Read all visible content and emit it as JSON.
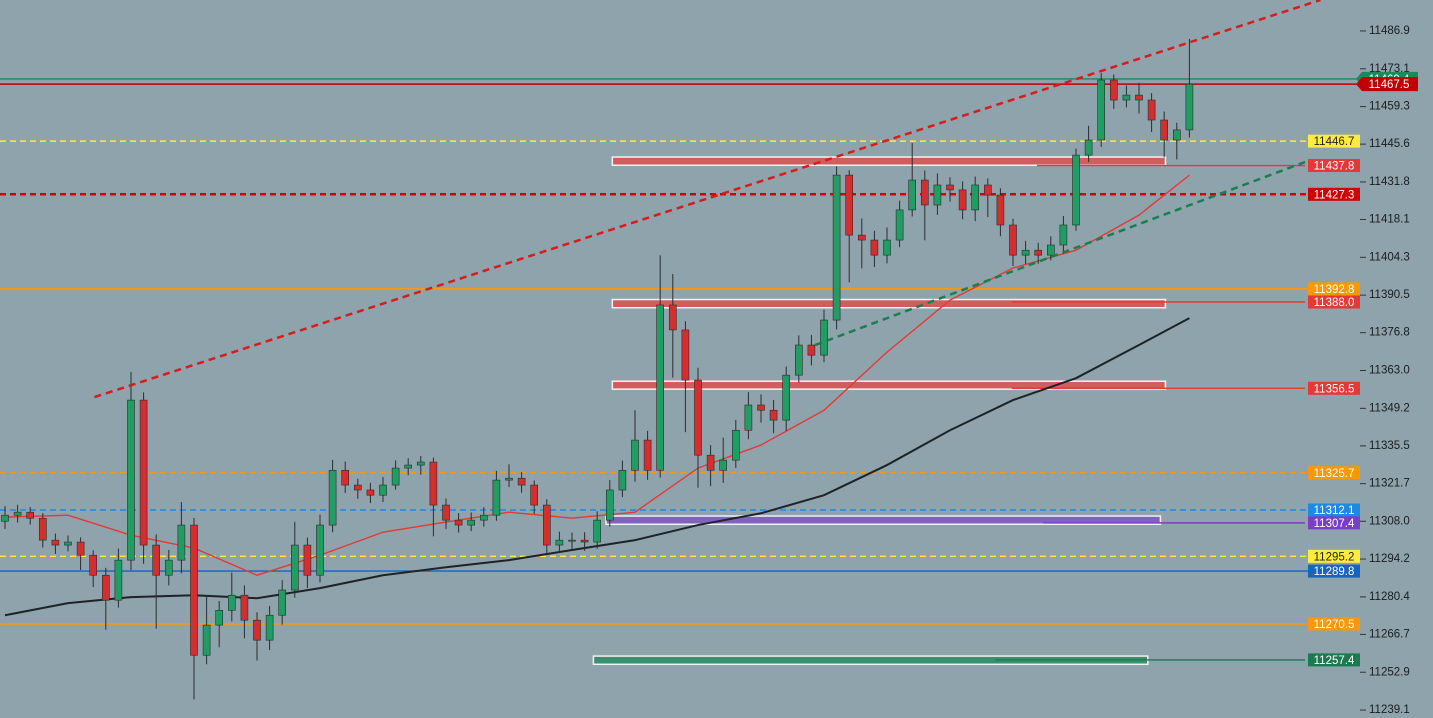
{
  "chart_data": {
    "type": "candlestick",
    "ylim": [
      11236.2,
      11498.2
    ],
    "yticks": [
      11486.9,
      11473.1,
      11459.3,
      11445.6,
      11431.8,
      11418.1,
      11404.3,
      11390.5,
      11376.8,
      {
        "value": 11363,
        "label": "11363.0"
      },
      11349.2,
      11335.5,
      11321.7,
      {
        "value": 11308,
        "label": "11308.0"
      },
      11294.2,
      11280.4,
      11266.7,
      11252.9,
      11239.1
    ],
    "up_color": "#1f9d63",
    "down_color": "#d32f2f",
    "open": [
      11308.0,
      11310.2,
      11311.3,
      11309.1,
      11301.1,
      11299.3,
      11300.4,
      11295.6,
      11288.3,
      11279.2,
      11293.8,
      11352.2,
      11299.3,
      11288.3,
      11293.8,
      11306.6,
      11259.1,
      11270.1,
      11275.5,
      11281.0,
      11271.9,
      11264.6,
      11273.7,
      11282.9,
      11299.3,
      11288.3,
      11306.6,
      11326.6,
      11321.2,
      11319.4,
      11317.5,
      11321.2,
      11327.4,
      11328.5,
      11329.6,
      11313.9,
      11308.4,
      11306.6,
      11308.4,
      11310.2,
      11323.0,
      11323.7,
      11321.2,
      11313.9,
      11299.3,
      11301.1,
      11301.1,
      11300.4,
      11308.4,
      11319.4,
      11326.6,
      11337.6,
      11326.6,
      11386.9,
      11377.8,
      11359.5,
      11332.1,
      11326.6,
      11330.3,
      11341.2,
      11350.4,
      11348.5,
      11344.9,
      11361.3,
      11372.3,
      11368.6,
      11381.4,
      11434.3,
      11412.4,
      11410.6,
      11405.1,
      11410.6,
      11421.6,
      11432.5,
      11423.4,
      11430.7,
      11428.9,
      11421.6,
      11430.7,
      11427.0,
      11416.1,
      11405.1,
      11406.9,
      11405.1,
      11408.8,
      11416.1,
      11441.6,
      11447.1,
      11469.0,
      11461.7,
      11463.5,
      11461.7,
      11454.4,
      11447.1,
      11450.8
    ],
    "high": [
      11313.5,
      11314.0,
      11313.2,
      11311.0,
      11303.5,
      11302.8,
      11302.1,
      11297.4,
      11291.0,
      11298.0,
      11362.5,
      11355.0,
      11303.2,
      11297.5,
      11315.0,
      11309.2,
      11280.5,
      11278.9,
      11289.3,
      11284.6,
      11274.8,
      11277.1,
      11286.5,
      11307.8,
      11302.0,
      11310.4,
      11330.4,
      11329.8,
      11323.5,
      11322.0,
      11324.1,
      11330.2,
      11331.0,
      11331.8,
      11331.2,
      11316.3,
      11311.0,
      11311.2,
      11313.1,
      11326.4,
      11328.8,
      11326.0,
      11322.9,
      11316.0,
      11304.2,
      11303.9,
      11304.0,
      11311.6,
      11323.0,
      11330.1,
      11348.5,
      11341.0,
      11405.0,
      11398.2,
      11381.0,
      11364.0,
      11335.8,
      11338.5,
      11345.0,
      11355.1,
      11354.3,
      11352.2,
      11364.5,
      11375.8,
      11376.0,
      11385.2,
      11437.5,
      11436.1,
      11418.5,
      11414.0,
      11415.2,
      11425.0,
      11446.0,
      11436.0,
      11434.9,
      11433.5,
      11432.0,
      11433.8,
      11433.1,
      11429.5,
      11418.4,
      11410.3,
      11409.6,
      11412.0,
      11419.4,
      11444.0,
      11452.3,
      11471.5,
      11471.0,
      11467.0,
      11468.0,
      11464.2,
      11457.5,
      11453.4,
      11484.0
    ],
    "low": [
      11305.2,
      11307.5,
      11306.8,
      11298.4,
      11296.1,
      11297.0,
      11290.2,
      11284.0,
      11268.4,
      11276.5,
      11290.1,
      11292.5,
      11268.8,
      11284.6,
      11289.0,
      11243.0,
      11255.8,
      11262.0,
      11271.4,
      11265.3,
      11257.2,
      11261.0,
      11270.3,
      11280.1,
      11283.6,
      11285.7,
      11304.0,
      11318.3,
      11316.2,
      11314.6,
      11315.0,
      11319.5,
      11324.8,
      11325.0,
      11302.5,
      11305.1,
      11303.9,
      11304.4,
      11306.0,
      11308.2,
      11320.5,
      11318.4,
      11310.6,
      11295.8,
      11296.5,
      11297.8,
      11297.2,
      11298.0,
      11306.1,
      11316.8,
      11322.4,
      11323.1,
      11323.9,
      11360.4,
      11340.5,
      11320.2,
      11320.8,
      11322.0,
      11327.4,
      11337.9,
      11344.0,
      11340.1,
      11341.0,
      11358.6,
      11364.9,
      11366.0,
      11378.0,
      11395.2,
      11400.3,
      11400.8,
      11402.1,
      11408.0,
      11419.2,
      11410.5,
      11419.8,
      11424.6,
      11418.2,
      11417.5,
      11419.0,
      11412.0,
      11401.2,
      11401.9,
      11402.0,
      11403.2,
      11405.5,
      11414.0,
      11439.1,
      11444.6,
      11458.5,
      11459.0,
      11456.8,
      11450.0,
      11440.8,
      11440.0,
      11448.0
    ],
    "close": [
      11310.2,
      11311.3,
      11309.1,
      11301.1,
      11299.3,
      11300.4,
      11295.6,
      11288.3,
      11279.2,
      11293.8,
      11352.2,
      11299.3,
      11288.3,
      11293.8,
      11306.6,
      11259.1,
      11270.1,
      11275.5,
      11281.0,
      11271.9,
      11264.6,
      11273.7,
      11282.9,
      11299.3,
      11288.3,
      11306.6,
      11326.6,
      11321.2,
      11319.4,
      11317.5,
      11321.2,
      11327.4,
      11328.5,
      11329.6,
      11313.9,
      11308.4,
      11306.6,
      11308.4,
      11310.2,
      11323.0,
      11323.7,
      11321.2,
      11313.9,
      11299.3,
      11301.1,
      11301.1,
      11300.4,
      11308.4,
      11319.4,
      11326.6,
      11337.6,
      11326.6,
      11386.9,
      11377.8,
      11359.5,
      11332.1,
      11326.6,
      11330.3,
      11341.2,
      11350.4,
      11348.5,
      11344.9,
      11361.3,
      11372.3,
      11368.6,
      11381.4,
      11434.3,
      11412.4,
      11410.6,
      11405.1,
      11410.6,
      11421.6,
      11432.5,
      11423.4,
      11430.7,
      11428.9,
      11421.6,
      11430.7,
      11427.0,
      11416.1,
      11405.1,
      11406.9,
      11405.1,
      11408.8,
      11416.1,
      11441.6,
      11447.1,
      11469.0,
      11461.7,
      11463.5,
      11461.7,
      11454.4,
      11447.1,
      11450.8,
      11467.5
    ],
    "moving_averages": [
      {
        "color": "#e53935",
        "x": [
          0,
          5,
          10,
          15,
          20,
          25,
          30,
          35,
          40,
          45,
          50,
          55,
          60,
          65,
          70,
          75,
          80,
          85,
          90,
          94
        ],
        "values": [
          11309.5,
          11310.2,
          11302.9,
          11298.2,
          11288.3,
          11295.6,
          11304.0,
          11307.7,
          11311.3,
          11309.1,
          11311.3,
          11327.4,
          11335.8,
          11348.5,
          11369.7,
          11388.7,
          11400.4,
          11406.9,
          11419.7,
          11434.3
        ]
      },
      {
        "color": "#1e2326",
        "x": [
          0,
          5,
          10,
          15,
          20,
          25,
          30,
          35,
          40,
          45,
          50,
          55,
          60,
          65,
          70,
          75,
          80,
          85,
          90,
          94
        ],
        "values": [
          11273.7,
          11278.1,
          11280.3,
          11281.0,
          11279.9,
          11283.6,
          11288.3,
          11291.2,
          11293.8,
          11297.5,
          11301.1,
          11306.6,
          11310.9,
          11317.5,
          11328.5,
          11341.2,
          11352.2,
          11360.2,
          11372.3,
          11382.1
        ]
      }
    ],
    "trendlines": [
      {
        "color": "#d81b1b",
        "x": [
          7.1,
          104.4
        ],
        "y": [
          11353.3,
          11498.2
        ]
      },
      {
        "color": "#17804d",
        "x": [
          64.3,
          103.6
        ],
        "y": [
          11372.3,
          11439.8
        ]
      }
    ],
    "zones": [
      {
        "color": "#d9534f",
        "start": 48.2,
        "end": 92.1,
        "low": 11437.9,
        "high": 11440.9
      },
      {
        "color": "#d9534f",
        "start": 48.2,
        "end": 92.1,
        "low": 11385.9,
        "high": 11388.9
      },
      {
        "color": "#d9534f",
        "start": 48.2,
        "end": 92.1,
        "low": 11356.2,
        "high": 11359.1
      },
      {
        "color": "#7e57c2",
        "start": 47.7,
        "end": 91.7,
        "low": 11306.9,
        "high": 11309.9
      },
      {
        "color": "#2e8b64",
        "start": 46.7,
        "end": 90.7,
        "low": 11255.8,
        "high": 11258.8
      }
    ],
    "levels": [
      {
        "value": 11469.4,
        "color": "#1a8a5a",
        "style": "solid"
      },
      {
        "value": 11467.5,
        "color": "#c00000",
        "style": "solid"
      },
      {
        "value": 11446.7,
        "color": "#ffeb3b",
        "style": "dashed",
        "text_color": "#222222"
      },
      {
        "value": 11437.8,
        "color": "#e53935",
        "style": "solid",
        "start": 81.9
      },
      {
        "value": 11427.3,
        "color": "#d00000",
        "style": "dashed"
      },
      {
        "value": 11392.8,
        "color": "#ff9800",
        "style": "solid"
      },
      {
        "value": 11388,
        "label": "11388.0",
        "color": "#e53935",
        "style": "solid",
        "start": 79.9
      },
      {
        "value": 11356.5,
        "color": "#e53935",
        "style": "solid",
        "start": 79.9
      },
      {
        "value": 11325.7,
        "color": "#ff9800",
        "style": "dashed"
      },
      {
        "value": 11312.1,
        "color": "#1e88e5",
        "style": "dashed"
      },
      {
        "value": 11307.4,
        "color": "#7b3fc4",
        "style": "solid",
        "start": 82.4
      },
      {
        "value": 11295.2,
        "color": "#ffeb3b",
        "style": "dashed",
        "text_color": "#222222"
      },
      {
        "value": 11289.8,
        "color": "#1565c0",
        "style": "solid"
      },
      {
        "value": 11270.5,
        "color": "#ff9800",
        "style": "solid"
      },
      {
        "value": 11257.4,
        "color": "#1b7a4f",
        "style": "solid",
        "start": 78.6
      }
    ]
  }
}
